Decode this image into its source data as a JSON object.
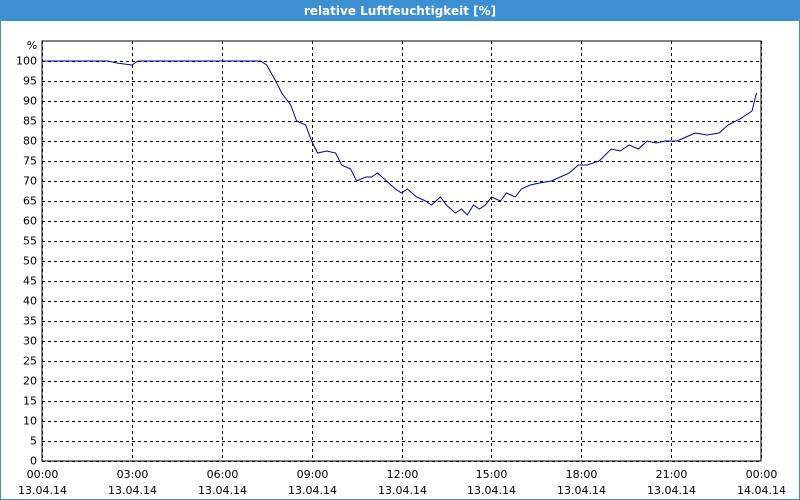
{
  "chart_data": {
    "type": "line",
    "title": "relative Luftfeuchtigkeit [%]",
    "y_label": "%",
    "xlim": [
      0,
      24
    ],
    "ylim": [
      0,
      105
    ],
    "yticks": [
      0,
      5,
      10,
      15,
      20,
      25,
      30,
      35,
      40,
      45,
      50,
      55,
      60,
      65,
      70,
      75,
      80,
      85,
      90,
      95,
      100
    ],
    "xticks": [
      {
        "value": 0,
        "label": "00:00",
        "date": "13.04.14"
      },
      {
        "value": 3,
        "label": "03:00",
        "date": "13.04.14"
      },
      {
        "value": 6,
        "label": "06:00",
        "date": "13.04.14"
      },
      {
        "value": 9,
        "label": "09:00",
        "date": "13.04.14"
      },
      {
        "value": 12,
        "label": "12:00",
        "date": "13.04.14"
      },
      {
        "value": 15,
        "label": "15:00",
        "date": "13.04.14"
      },
      {
        "value": 18,
        "label": "18:00",
        "date": "13.04.14"
      },
      {
        "value": 21,
        "label": "21:00",
        "date": "13.04.14"
      },
      {
        "value": 24,
        "label": "00:00",
        "date": "14.04.14"
      }
    ],
    "grid": true,
    "x": [
      0,
      2.2,
      2.5,
      3,
      3.2,
      4,
      7.3,
      7.5,
      7.8,
      8,
      8.3,
      8.5,
      8.8,
      9,
      9.2,
      9.5,
      9.8,
      10,
      10.3,
      10.5,
      10.8,
      11,
      11.2,
      11.5,
      11.8,
      12,
      12.2,
      12.5,
      12.8,
      13,
      13.3,
      13.5,
      13.8,
      14,
      14.2,
      14.4,
      14.6,
      14.8,
      15,
      15.3,
      15.5,
      15.8,
      16,
      16.3,
      16.6,
      17,
      17.3,
      17.6,
      17.9,
      18.2,
      18.6,
      19,
      19.3,
      19.6,
      19.9,
      20.2,
      20.5,
      20.8,
      21.2,
      21.5,
      21.8,
      22.2,
      22.6,
      22.9,
      23.3,
      23.5,
      23.7,
      23.85
    ],
    "series": [
      {
        "name": "relative Luftfeuchtigkeit",
        "color": "#0000a0",
        "values": [
          100,
          100,
          99.5,
          99,
          100,
          100,
          100,
          99,
          95,
          92,
          89,
          85,
          84,
          80,
          77,
          77.5,
          77,
          74,
          73,
          70,
          71,
          71,
          72,
          70,
          68,
          67,
          68,
          66,
          65,
          64,
          66,
          64,
          62,
          63,
          61.5,
          64,
          63,
          64,
          66,
          65,
          67,
          66,
          68,
          69,
          69.5,
          70,
          71,
          72,
          74,
          74,
          75,
          78,
          77.5,
          79,
          78,
          80,
          79.5,
          80,
          80,
          81,
          82,
          81.5,
          82,
          84,
          85.5,
          86.5,
          87.5,
          92
        ]
      }
    ]
  }
}
